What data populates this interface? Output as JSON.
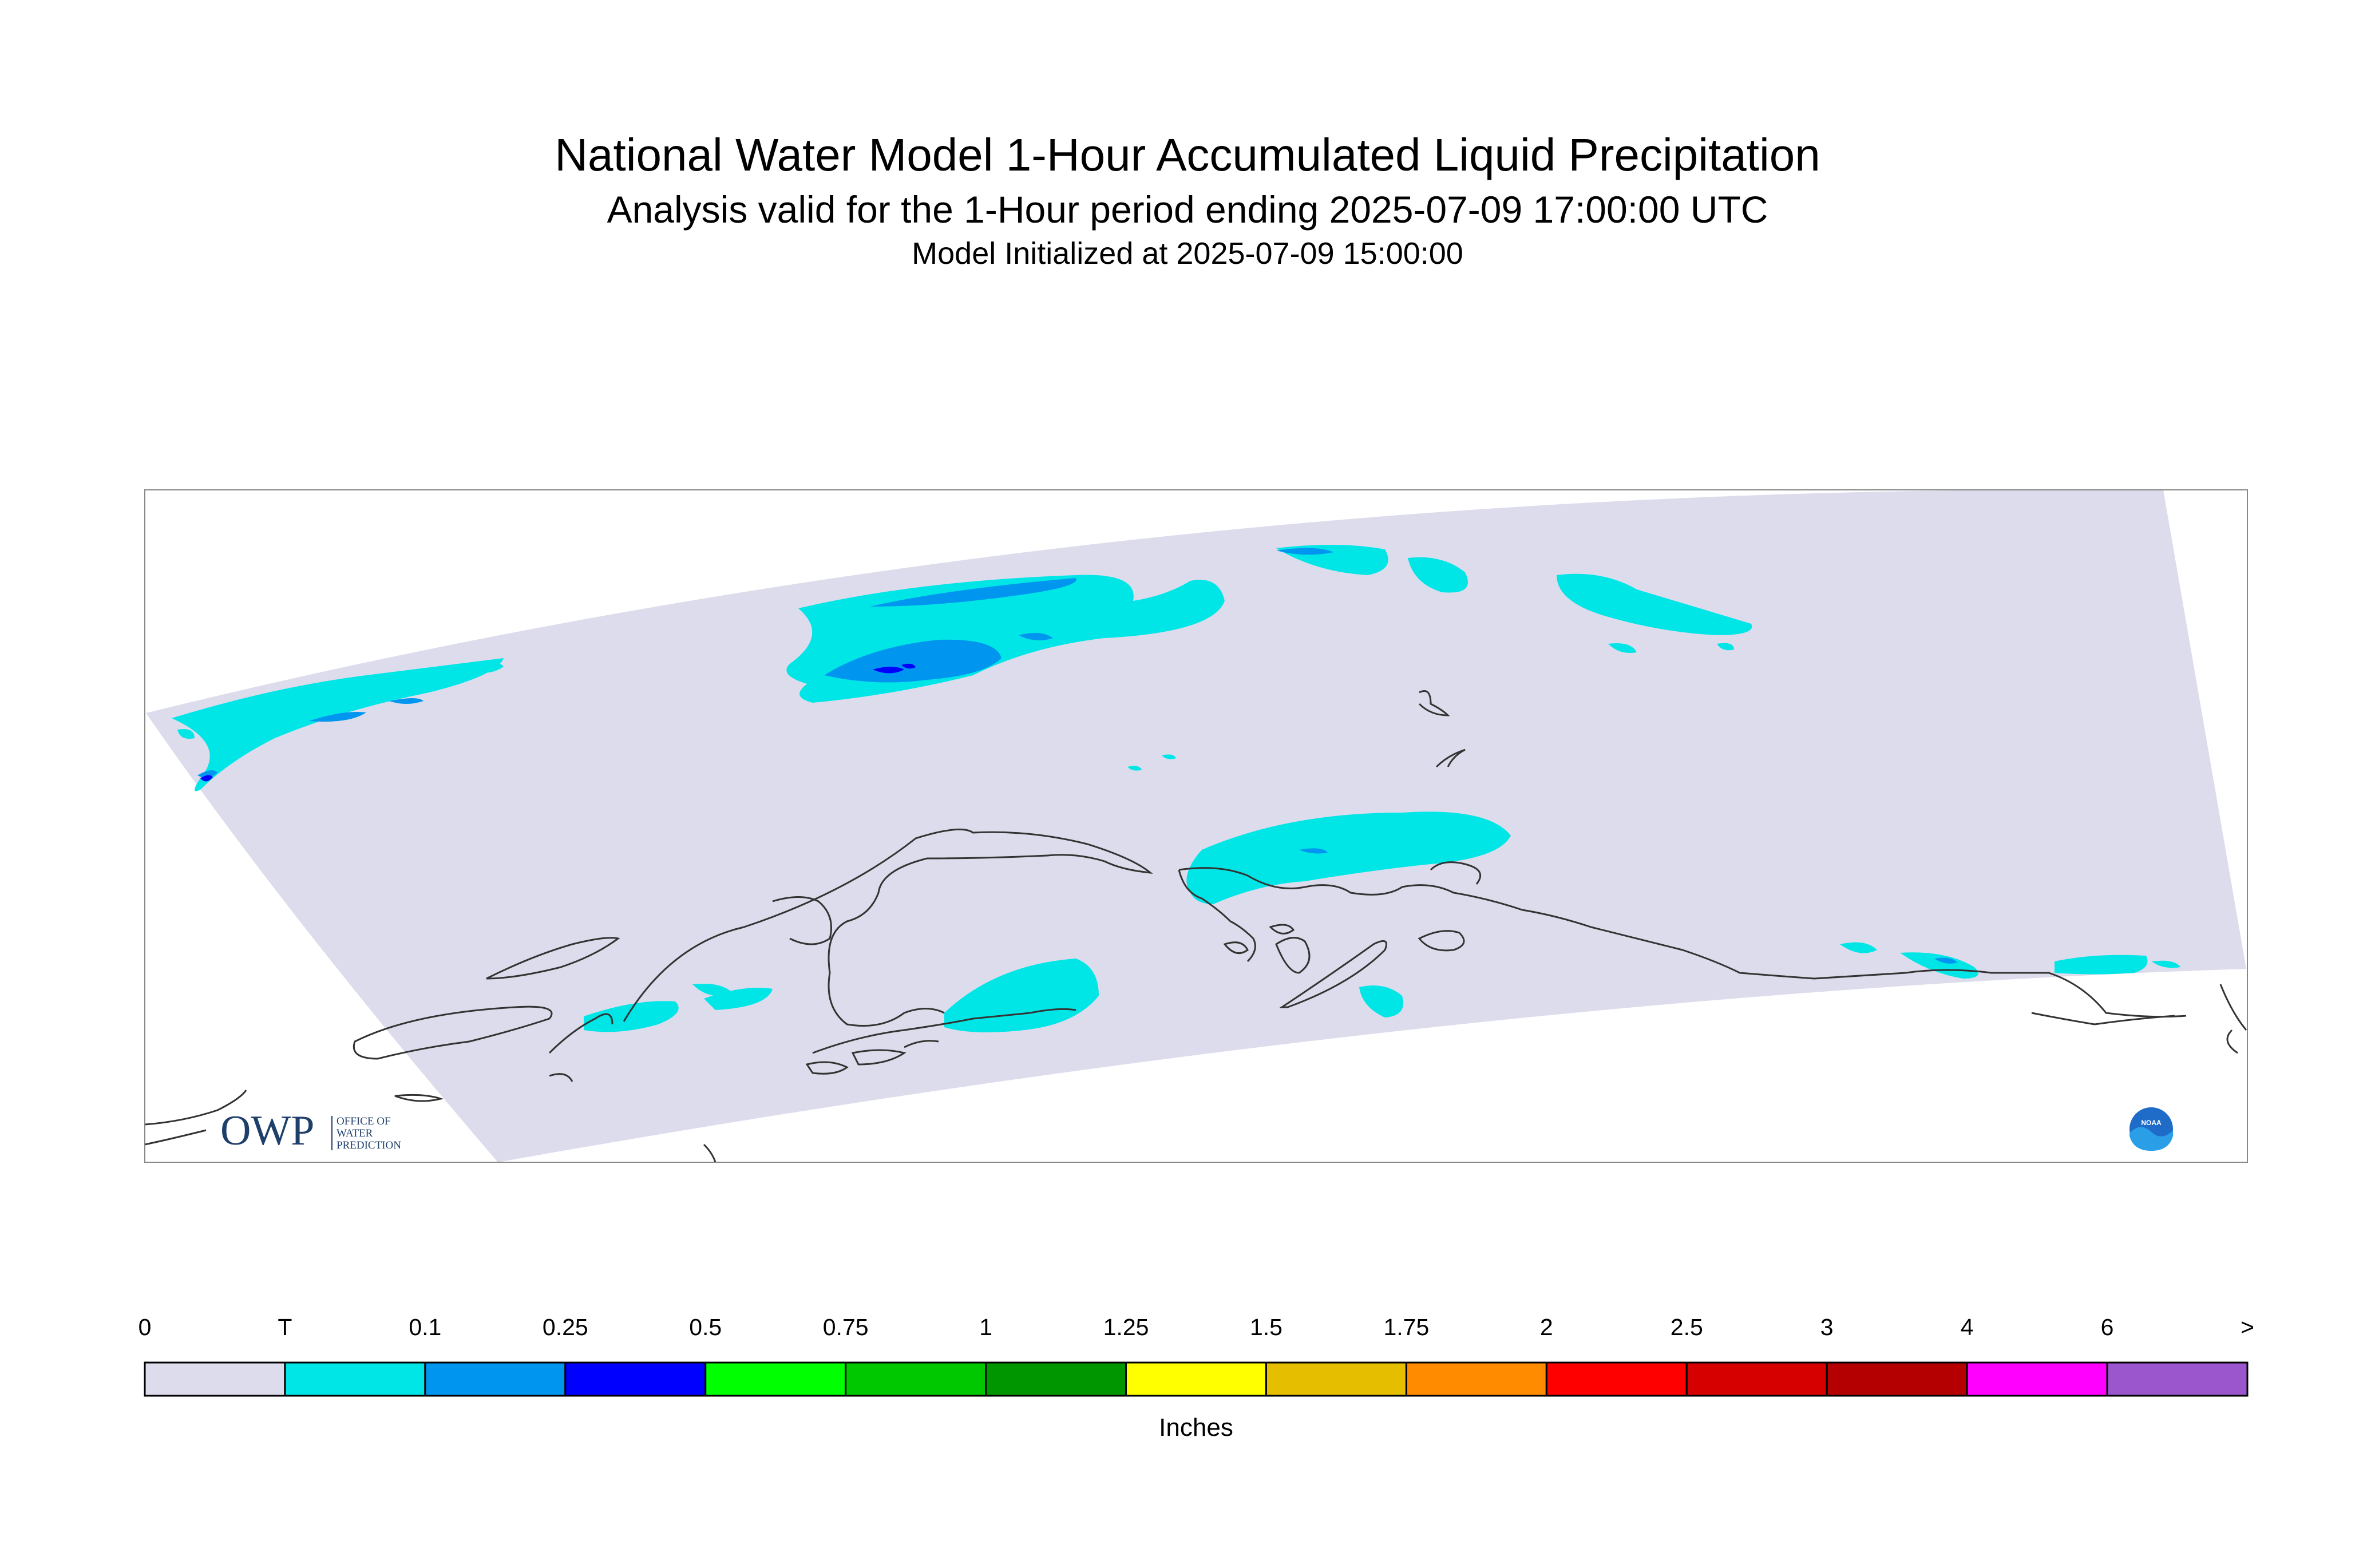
{
  "title": "National Water Model 1-Hour Accumulated Liquid Precipitation",
  "subtitle": "Analysis valid for the 1-Hour period ending 2025-07-09 17:00:00 UTC",
  "init_line": "Model Initialized at 2025-07-09 15:00:00",
  "logo": {
    "owp_text": "OWP",
    "owp_lines": [
      "OFFICE OF",
      "WATER",
      "PREDICTION"
    ],
    "noaa_text": "NOAA"
  },
  "colors": {
    "domain_background": "#dcdcec",
    "trace": "#00e6e6",
    "light_blue": "#0096f0",
    "dark_blue": "#0000ff",
    "coastline": "#333333"
  },
  "colorbar": {
    "labels": [
      "0",
      "T",
      "0.1",
      "0.25",
      "0.5",
      "0.75",
      "1",
      "1.25",
      "1.5",
      "1.75",
      "2",
      "2.5",
      "3",
      "4",
      "6",
      ">"
    ],
    "colors": [
      "#dcdcec",
      "#00e6e6",
      "#0096f0",
      "#0000ff",
      "#00ff00",
      "#00c800",
      "#009600",
      "#ffff00",
      "#e6be00",
      "#ff8c00",
      "#ff0000",
      "#d70000",
      "#b40000",
      "#ff00ff",
      "#9b55cd"
    ],
    "unit": "Inches"
  }
}
